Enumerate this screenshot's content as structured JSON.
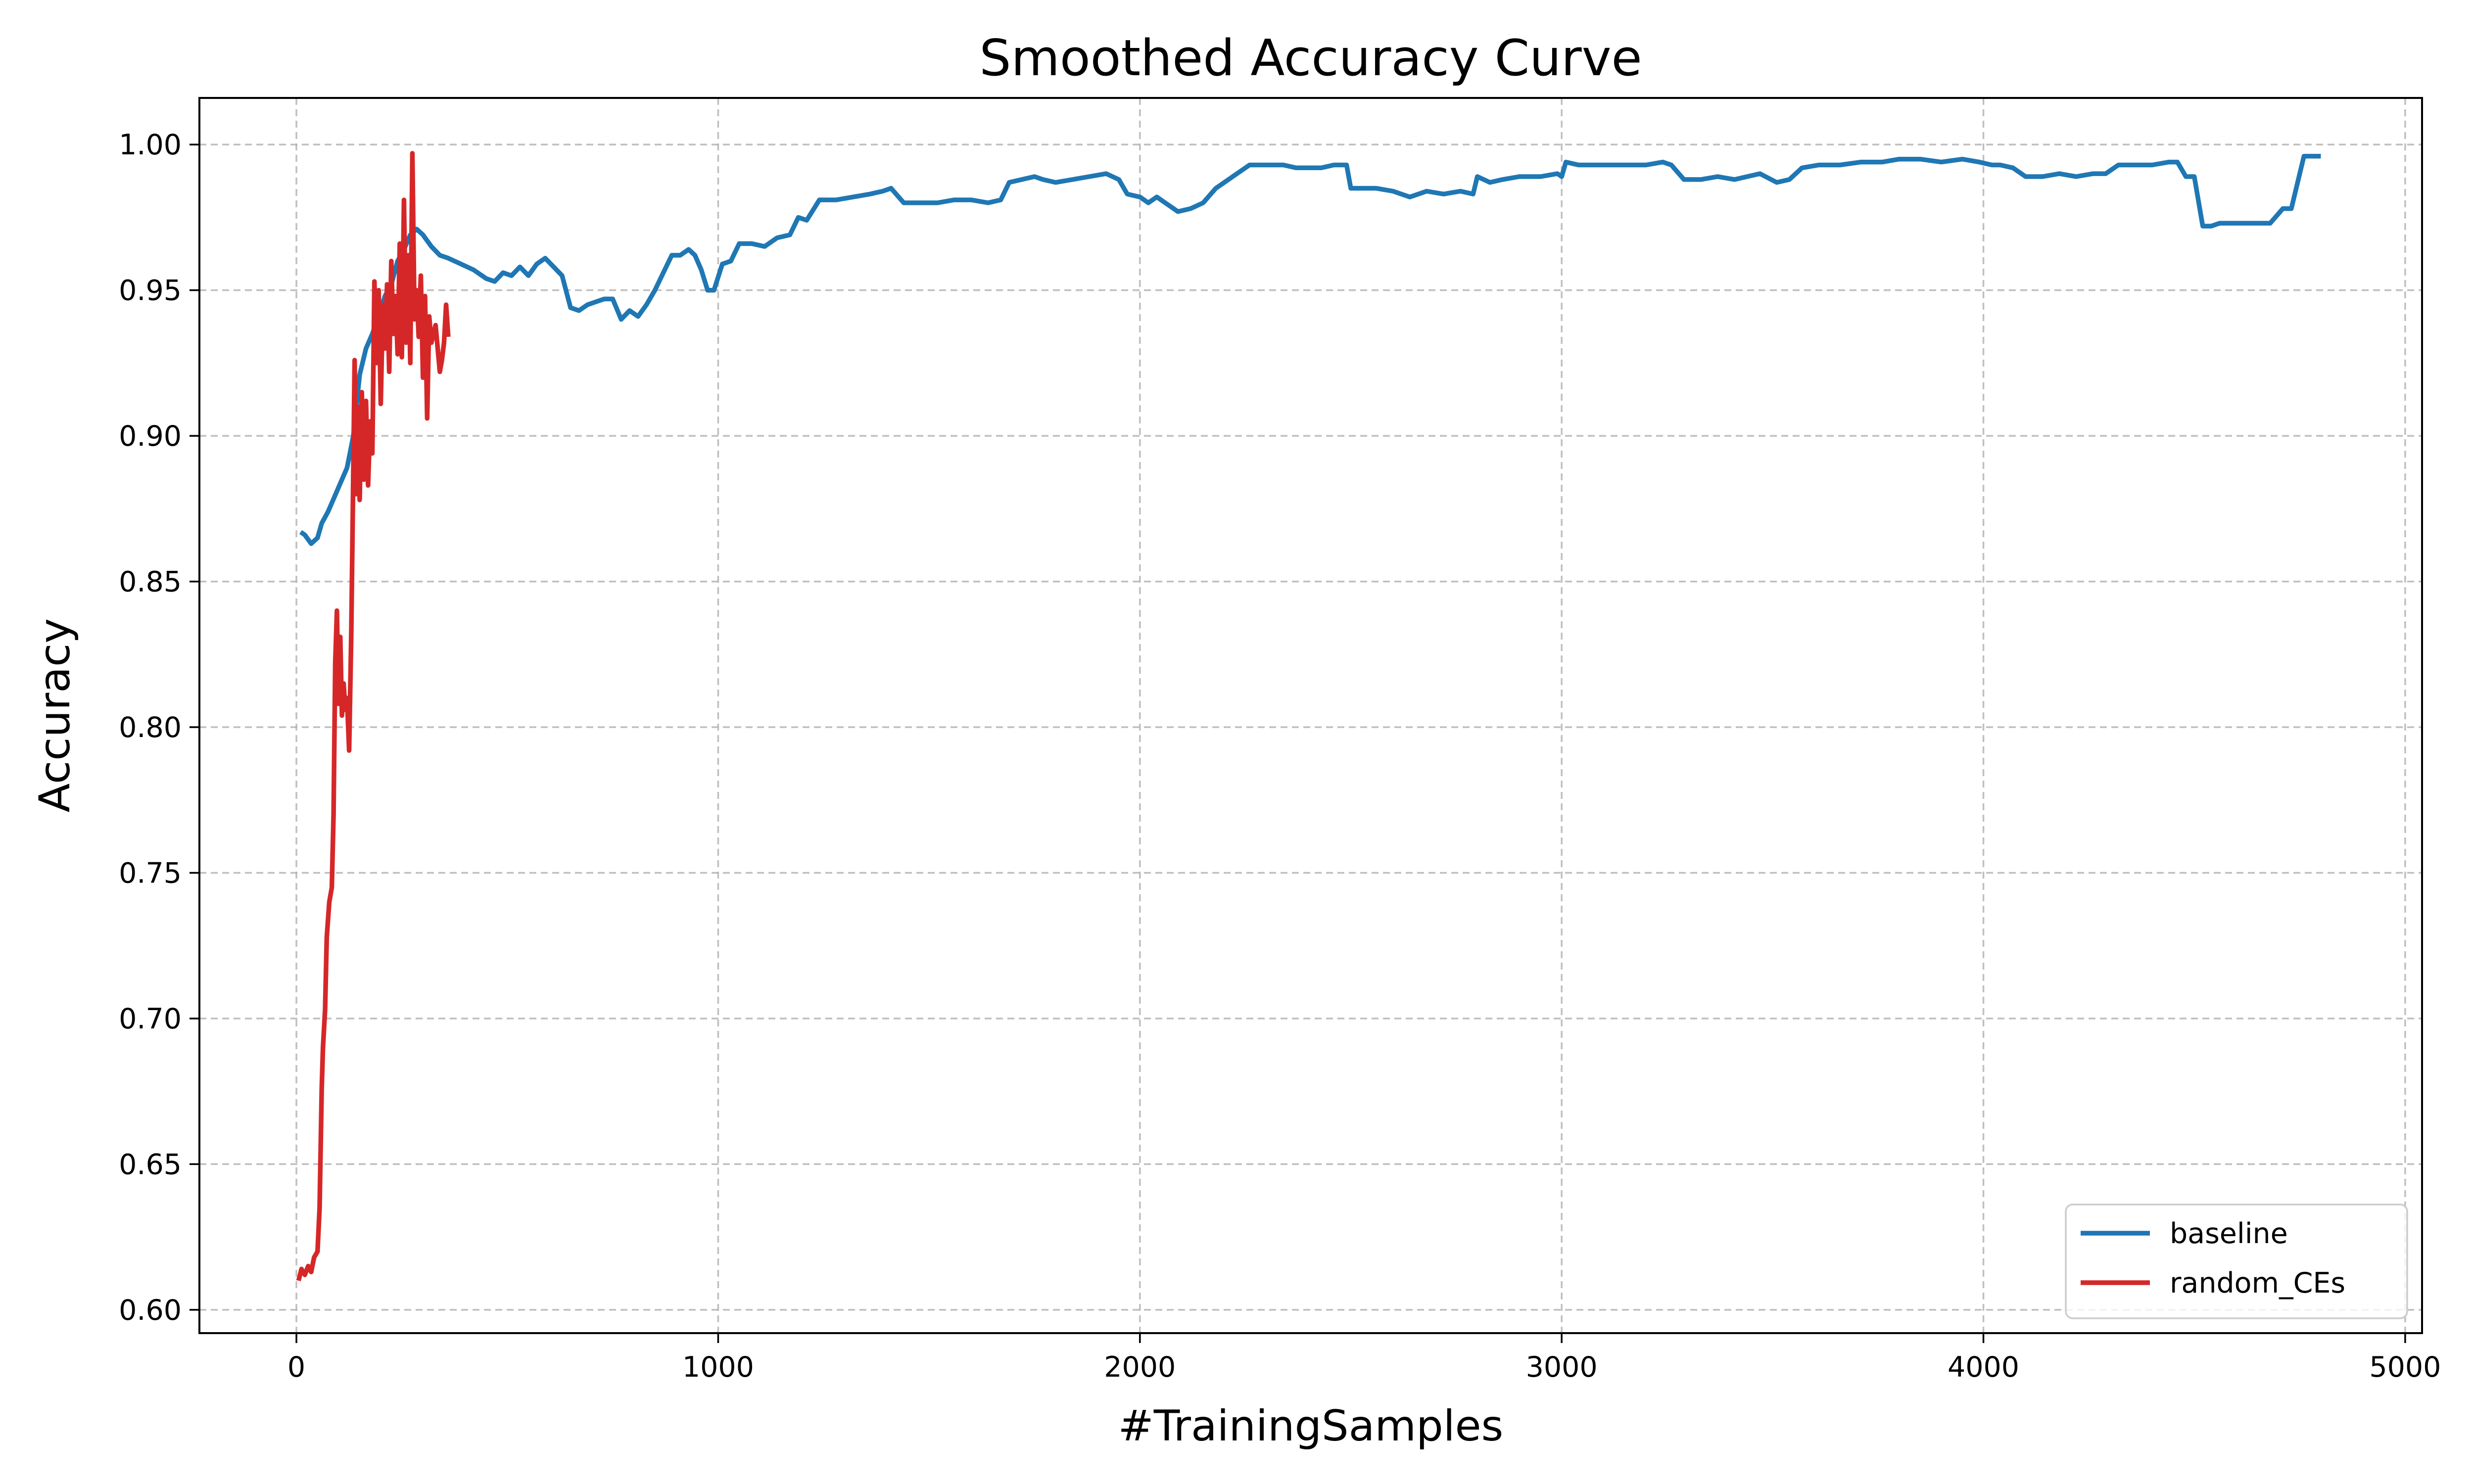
{
  "chart_data": {
    "type": "line",
    "title": "Smoothed Accuracy Curve",
    "xlabel": "#TrainingSamples",
    "ylabel": "Accuracy",
    "xlim": [
      -230,
      5040
    ],
    "ylim": [
      0.592,
      1.016
    ],
    "xticks": [
      0,
      1000,
      2000,
      3000,
      4000,
      5000
    ],
    "xtick_labels": [
      "0",
      "1000",
      "2000",
      "3000",
      "4000",
      "5000"
    ],
    "yticks": [
      0.6,
      0.65,
      0.7,
      0.75,
      0.8,
      0.85,
      0.9,
      0.95,
      1.0
    ],
    "ytick_labels": [
      "0.60",
      "0.65",
      "0.70",
      "0.75",
      "0.80",
      "0.85",
      "0.90",
      "0.95",
      "1.00"
    ],
    "grid": true,
    "legend": "lower-right",
    "series": [
      {
        "name": "baseline",
        "color": "#1f77b4",
        "x": [
          10,
          20,
          35,
          50,
          60,
          75,
          90,
          105,
          120,
          135,
          150,
          165,
          180,
          195,
          210,
          225,
          240,
          255,
          270,
          285,
          300,
          320,
          340,
          360,
          390,
          420,
          450,
          470,
          490,
          510,
          530,
          550,
          570,
          590,
          610,
          630,
          650,
          670,
          690,
          710,
          730,
          750,
          770,
          790,
          810,
          830,
          850,
          870,
          890,
          910,
          930,
          945,
          960,
          975,
          990,
          1010,
          1030,
          1050,
          1080,
          1110,
          1140,
          1170,
          1190,
          1210,
          1240,
          1280,
          1320,
          1360,
          1390,
          1410,
          1440,
          1480,
          1520,
          1560,
          1600,
          1640,
          1670,
          1690,
          1720,
          1750,
          1770,
          1800,
          1840,
          1880,
          1920,
          1950,
          1970,
          2000,
          2020,
          2040,
          2060,
          2090,
          2120,
          2150,
          2180,
          2200,
          2230,
          2260,
          2290,
          2320,
          2340,
          2370,
          2400,
          2430,
          2460,
          2490,
          2500,
          2530,
          2560,
          2600,
          2640,
          2680,
          2720,
          2760,
          2790,
          2800,
          2830,
          2860,
          2900,
          2950,
          2990,
          3000,
          3010,
          3040,
          3080,
          3120,
          3160,
          3200,
          3240,
          3260,
          3290,
          3330,
          3370,
          3410,
          3440,
          3470,
          3510,
          3540,
          3570,
          3610,
          3660,
          3710,
          3760,
          3800,
          3850,
          3900,
          3950,
          3990,
          4020,
          4040,
          4070,
          4100,
          4140,
          4180,
          4220,
          4260,
          4290,
          4320,
          4360,
          4400,
          4440,
          4460,
          4480,
          4500,
          4520,
          4540,
          4560,
          4600,
          4640,
          4680,
          4710,
          4730,
          4760,
          4780,
          4800
        ],
        "y": [
          0.867,
          0.866,
          0.863,
          0.865,
          0.87,
          0.874,
          0.879,
          0.884,
          0.889,
          0.9,
          0.921,
          0.93,
          0.935,
          0.941,
          0.948,
          0.952,
          0.96,
          0.964,
          0.969,
          0.971,
          0.969,
          0.965,
          0.962,
          0.961,
          0.959,
          0.957,
          0.954,
          0.953,
          0.956,
          0.955,
          0.958,
          0.955,
          0.959,
          0.961,
          0.958,
          0.955,
          0.944,
          0.943,
          0.945,
          0.946,
          0.947,
          0.947,
          0.94,
          0.943,
          0.941,
          0.945,
          0.95,
          0.956,
          0.962,
          0.962,
          0.964,
          0.962,
          0.957,
          0.95,
          0.95,
          0.959,
          0.96,
          0.966,
          0.966,
          0.965,
          0.968,
          0.969,
          0.975,
          0.974,
          0.981,
          0.981,
          0.982,
          0.983,
          0.984,
          0.985,
          0.98,
          0.98,
          0.98,
          0.981,
          0.981,
          0.98,
          0.981,
          0.987,
          0.988,
          0.989,
          0.988,
          0.987,
          0.988,
          0.989,
          0.99,
          0.988,
          0.983,
          0.982,
          0.98,
          0.982,
          0.98,
          0.977,
          0.978,
          0.98,
          0.985,
          0.987,
          0.99,
          0.993,
          0.993,
          0.993,
          0.993,
          0.992,
          0.992,
          0.992,
          0.993,
          0.993,
          0.985,
          0.985,
          0.985,
          0.984,
          0.982,
          0.984,
          0.983,
          0.984,
          0.983,
          0.989,
          0.987,
          0.988,
          0.989,
          0.989,
          0.99,
          0.989,
          0.994,
          0.993,
          0.993,
          0.993,
          0.993,
          0.993,
          0.994,
          0.993,
          0.988,
          0.988,
          0.989,
          0.988,
          0.989,
          0.99,
          0.987,
          0.988,
          0.992,
          0.993,
          0.993,
          0.994,
          0.994,
          0.995,
          0.995,
          0.994,
          0.995,
          0.994,
          0.993,
          0.993,
          0.992,
          0.989,
          0.989,
          0.99,
          0.989,
          0.99,
          0.99,
          0.993,
          0.993,
          0.993,
          0.994,
          0.994,
          0.989,
          0.989,
          0.972,
          0.972,
          0.973,
          0.973,
          0.973,
          0.973,
          0.978,
          0.978,
          0.996,
          0.996,
          0.996
        ]
      },
      {
        "name": "random_CEs",
        "color": "#d62728",
        "x": [
          5,
          12,
          20,
          28,
          35,
          42,
          50,
          55,
          60,
          63,
          68,
          72,
          78,
          84,
          88,
          92,
          96,
          100,
          104,
          108,
          112,
          116,
          120,
          125,
          130,
          134,
          138,
          142,
          146,
          150,
          155,
          160,
          165,
          170,
          175,
          180,
          185,
          190,
          195,
          200,
          205,
          210,
          215,
          220,
          225,
          230,
          235,
          240,
          245,
          250,
          255,
          260,
          265,
          270,
          275,
          280,
          285,
          290,
          295,
          300,
          305,
          310,
          315,
          320,
          325,
          330,
          335,
          340,
          345,
          350,
          355,
          360
        ],
        "y": [
          0.61,
          0.614,
          0.612,
          0.615,
          0.613,
          0.618,
          0.62,
          0.635,
          0.676,
          0.69,
          0.703,
          0.728,
          0.74,
          0.745,
          0.77,
          0.822,
          0.84,
          0.808,
          0.831,
          0.804,
          0.815,
          0.806,
          0.81,
          0.792,
          0.832,
          0.878,
          0.926,
          0.88,
          0.91,
          0.878,
          0.915,
          0.885,
          0.912,
          0.883,
          0.905,
          0.894,
          0.953,
          0.925,
          0.95,
          0.911,
          0.945,
          0.93,
          0.952,
          0.922,
          0.96,
          0.935,
          0.948,
          0.928,
          0.966,
          0.927,
          0.981,
          0.932,
          0.962,
          0.925,
          0.997,
          0.94,
          0.95,
          0.934,
          0.955,
          0.92,
          0.948,
          0.906,
          0.941,
          0.932,
          0.935,
          0.938,
          0.93,
          0.922,
          0.926,
          0.932,
          0.945,
          0.934
        ]
      }
    ]
  }
}
